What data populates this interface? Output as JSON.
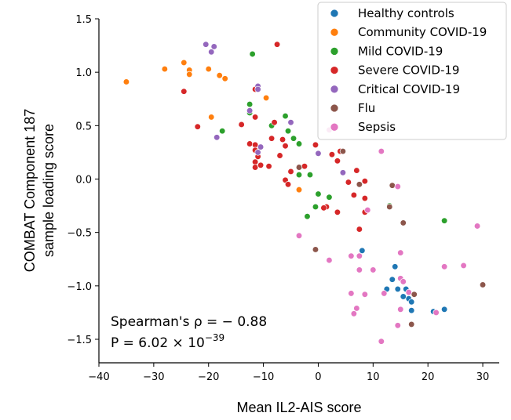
{
  "chart_data": {
    "type": "scatter",
    "xlabel": "Mean IL2-AIS score",
    "ylabel_line1": "COMBAT Component 187",
    "ylabel_line2": "sample loading score",
    "xlim": [
      -40,
      33
    ],
    "ylim": [
      -1.72,
      1.5
    ],
    "xticks": [
      -40,
      -30,
      -20,
      -10,
      0,
      10,
      20,
      30
    ],
    "yticks": [
      -1.5,
      -1.0,
      -0.5,
      0.0,
      0.5,
      1.0,
      1.5
    ],
    "xtick_labels": [
      "−40",
      "−30",
      "−20",
      "−10",
      "0",
      "10",
      "20",
      "30"
    ],
    "ytick_labels": [
      "−1.5",
      "−1.0",
      "−0.5",
      "0.0",
      "0.5",
      "1.0",
      "1.5"
    ],
    "legend_position": "top-right",
    "annotation": {
      "line1": "Spearman's ρ = − 0.88",
      "line2": "P = 6.02 × 10",
      "line2_exponent": "−39"
    },
    "series": [
      {
        "name": "Healthy controls",
        "color": "#1f77b4",
        "points": [
          [
            8,
            -0.67
          ],
          [
            14,
            -0.82
          ],
          [
            13.5,
            -0.94
          ],
          [
            12.5,
            -1.03
          ],
          [
            14.5,
            -1.03
          ],
          [
            15.5,
            -1.1
          ],
          [
            16.5,
            -1.12
          ],
          [
            16,
            -1.03
          ],
          [
            17,
            -1.15
          ],
          [
            17,
            -1.23
          ],
          [
            21,
            -1.24
          ],
          [
            23,
            -1.22
          ],
          [
            21.5,
            -1.25
          ]
        ]
      },
      {
        "name": "Community COVID-19",
        "color": "#ff7f0e",
        "points": [
          [
            -35,
            0.91
          ],
          [
            -28,
            1.03
          ],
          [
            -24.5,
            1.09
          ],
          [
            -23.5,
            1.02
          ],
          [
            -23.5,
            0.98
          ],
          [
            -20,
            1.03
          ],
          [
            -18,
            0.97
          ],
          [
            -17,
            0.94
          ],
          [
            -9.5,
            0.76
          ],
          [
            -19.5,
            0.58
          ],
          [
            -3.5,
            -0.1
          ]
        ]
      },
      {
        "name": "Mild COVID-19",
        "color": "#2ca02c",
        "points": [
          [
            -12,
            1.17
          ],
          [
            -12.5,
            0.7
          ],
          [
            -12.5,
            0.62
          ],
          [
            -17.5,
            0.45
          ],
          [
            -6,
            0.59
          ],
          [
            -8.5,
            0.5
          ],
          [
            -5.5,
            0.45
          ],
          [
            -4.5,
            0.38
          ],
          [
            -3.5,
            0.33
          ],
          [
            -3.5,
            0.04
          ],
          [
            -1.5,
            0.04
          ],
          [
            0,
            -0.14
          ],
          [
            -0.5,
            -0.26
          ],
          [
            2,
            -0.17
          ],
          [
            -2,
            -0.35
          ],
          [
            13,
            -0.25
          ],
          [
            23,
            -0.39
          ]
        ]
      },
      {
        "name": "Severe COVID-19",
        "color": "#d62728",
        "points": [
          [
            -7.5,
            1.26
          ],
          [
            -24.5,
            0.82
          ],
          [
            -11.5,
            0.84
          ],
          [
            -11.5,
            0.58
          ],
          [
            -14,
            0.51
          ],
          [
            -8,
            0.53
          ],
          [
            -22,
            0.49
          ],
          [
            -12.5,
            0.33
          ],
          [
            -11.5,
            0.32
          ],
          [
            -11,
            0.21
          ],
          [
            -11.5,
            0.27
          ],
          [
            -8.5,
            0.38
          ],
          [
            -6.5,
            0.37
          ],
          [
            -6,
            0.31
          ],
          [
            -7,
            0.22
          ],
          [
            -11.5,
            0.16
          ],
          [
            -11.5,
            0.11
          ],
          [
            -10.5,
            0.13
          ],
          [
            -9,
            0.12
          ],
          [
            -5,
            0.07
          ],
          [
            -6,
            -0.01
          ],
          [
            -5.5,
            -0.05
          ],
          [
            -2.5,
            0.12
          ],
          [
            -0.5,
            0.32
          ],
          [
            2.5,
            0.23
          ],
          [
            4,
            0.26
          ],
          [
            3.5,
            0.17
          ],
          [
            7,
            0.08
          ],
          [
            8.5,
            -0.02
          ],
          [
            5.5,
            -0.03
          ],
          [
            6.5,
            -0.15
          ],
          [
            1.5,
            -0.26
          ],
          [
            1,
            -0.27
          ],
          [
            3.5,
            -0.31
          ],
          [
            8.5,
            -0.18
          ],
          [
            8.5,
            -0.31
          ],
          [
            7.5,
            -0.47
          ]
        ]
      },
      {
        "name": "Critical COVID-19",
        "color": "#9467bd",
        "points": [
          [
            -20.5,
            1.26
          ],
          [
            -19,
            1.24
          ],
          [
            -19.5,
            1.19
          ],
          [
            -11,
            0.87
          ],
          [
            -11,
            0.84
          ],
          [
            -12.5,
            0.64
          ],
          [
            -5,
            0.53
          ],
          [
            -18.5,
            0.39
          ],
          [
            -10.5,
            0.3
          ],
          [
            -11,
            0.25
          ],
          [
            0,
            0.24
          ],
          [
            4.5,
            0.06
          ]
        ]
      },
      {
        "name": "Flu",
        "color": "#8c564b",
        "points": [
          [
            -3.5,
            0.11
          ],
          [
            4.5,
            0.26
          ],
          [
            7.5,
            -0.05
          ],
          [
            13.5,
            -0.06
          ],
          [
            13,
            -0.26
          ],
          [
            -0.5,
            -0.66
          ],
          [
            15.5,
            -0.41
          ],
          [
            17.5,
            -1.08
          ],
          [
            30,
            -0.99
          ],
          [
            17,
            -1.36
          ]
        ]
      },
      {
        "name": "Sepsis",
        "color": "#e377c2",
        "points": [
          [
            2,
            0.46
          ],
          [
            11.5,
            0.26
          ],
          [
            14.5,
            -0.07
          ],
          [
            9,
            -0.29
          ],
          [
            -3.5,
            -0.53
          ],
          [
            2,
            -0.76
          ],
          [
            6,
            -0.72
          ],
          [
            7.5,
            -0.72
          ],
          [
            7.5,
            -0.85
          ],
          [
            15,
            -0.69
          ],
          [
            10,
            -0.85
          ],
          [
            15,
            -0.93
          ],
          [
            15.5,
            -0.96
          ],
          [
            16.5,
            -1.06
          ],
          [
            6,
            -1.07
          ],
          [
            8.5,
            -1.08
          ],
          [
            12,
            -1.07
          ],
          [
            15,
            -1.22
          ],
          [
            7,
            -1.21
          ],
          [
            6.5,
            -1.26
          ],
          [
            11.5,
            -1.52
          ],
          [
            14.5,
            -1.37
          ],
          [
            21.5,
            -1.25
          ],
          [
            23,
            -0.82
          ],
          [
            26.5,
            -0.81
          ],
          [
            29,
            -0.44
          ]
        ]
      }
    ]
  }
}
